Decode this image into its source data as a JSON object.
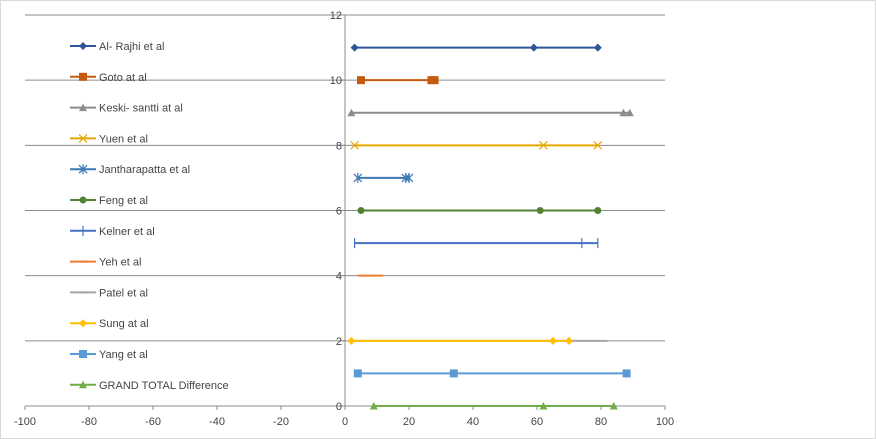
{
  "chart_data": {
    "type": "line",
    "title": "",
    "xlabel": "",
    "ylabel": "",
    "xlim": [
      -100,
      100
    ],
    "ylim": [
      0,
      12
    ],
    "x_ticks": [
      "-100",
      "-80",
      "-60",
      "-40",
      "-20",
      "0",
      "20",
      "40",
      "60",
      "80",
      "100"
    ],
    "y_ticks": [
      "0",
      "2",
      "4",
      "6",
      "8",
      "10",
      "12"
    ],
    "grid": "horizontal",
    "legend_position": "left-inside",
    "series": [
      {
        "name": "Al- Rajhi et al",
        "y": 11,
        "x": [
          3,
          59,
          79
        ],
        "color": "#2E5597",
        "marker": "diamond"
      },
      {
        "name": "Goto at al",
        "y": 10,
        "x": [
          5,
          27,
          28
        ],
        "color": "#C55A11",
        "marker": "square"
      },
      {
        "name": "Keski- santti at al",
        "y": 9,
        "x": [
          2,
          87,
          89
        ],
        "color": "#8C8C8C",
        "marker": "triangle"
      },
      {
        "name": "Yuen et al",
        "y": 8,
        "x": [
          3,
          62,
          79
        ],
        "color": "#E6A800",
        "marker": "x"
      },
      {
        "name": "Jantharapatta et al",
        "y": 7,
        "x": [
          4,
          19,
          20
        ],
        "color": "#3C78B4",
        "marker": "star"
      },
      {
        "name": "Feng et al",
        "y": 6,
        "x": [
          5,
          61,
          79
        ],
        "color": "#548235",
        "marker": "circle"
      },
      {
        "name": "Kelner et al",
        "y": 5,
        "x": [
          3,
          74,
          79
        ],
        "color": "#4472C4",
        "marker": "plus"
      },
      {
        "name": "Yeh et al",
        "y": 4,
        "x": [
          4,
          12
        ],
        "color": "#ED7D31",
        "marker": "dash"
      },
      {
        "name": "Patel et al",
        "y": 2,
        "x": [
          2,
          82
        ],
        "color": "#A5A5A5",
        "marker": "dash"
      },
      {
        "name": "Sung at al",
        "y": 2,
        "x": [
          2,
          65,
          70
        ],
        "color": "#FFC000",
        "marker": "diamond"
      },
      {
        "name": "Yang et al",
        "y": 1,
        "x": [
          4,
          34,
          88
        ],
        "color": "#5B9BD5",
        "marker": "square"
      },
      {
        "name": "GRAND TOTAL Difference",
        "y": 0,
        "x": [
          9,
          62,
          84
        ],
        "color": "#70AD47",
        "marker": "triangle"
      }
    ]
  }
}
